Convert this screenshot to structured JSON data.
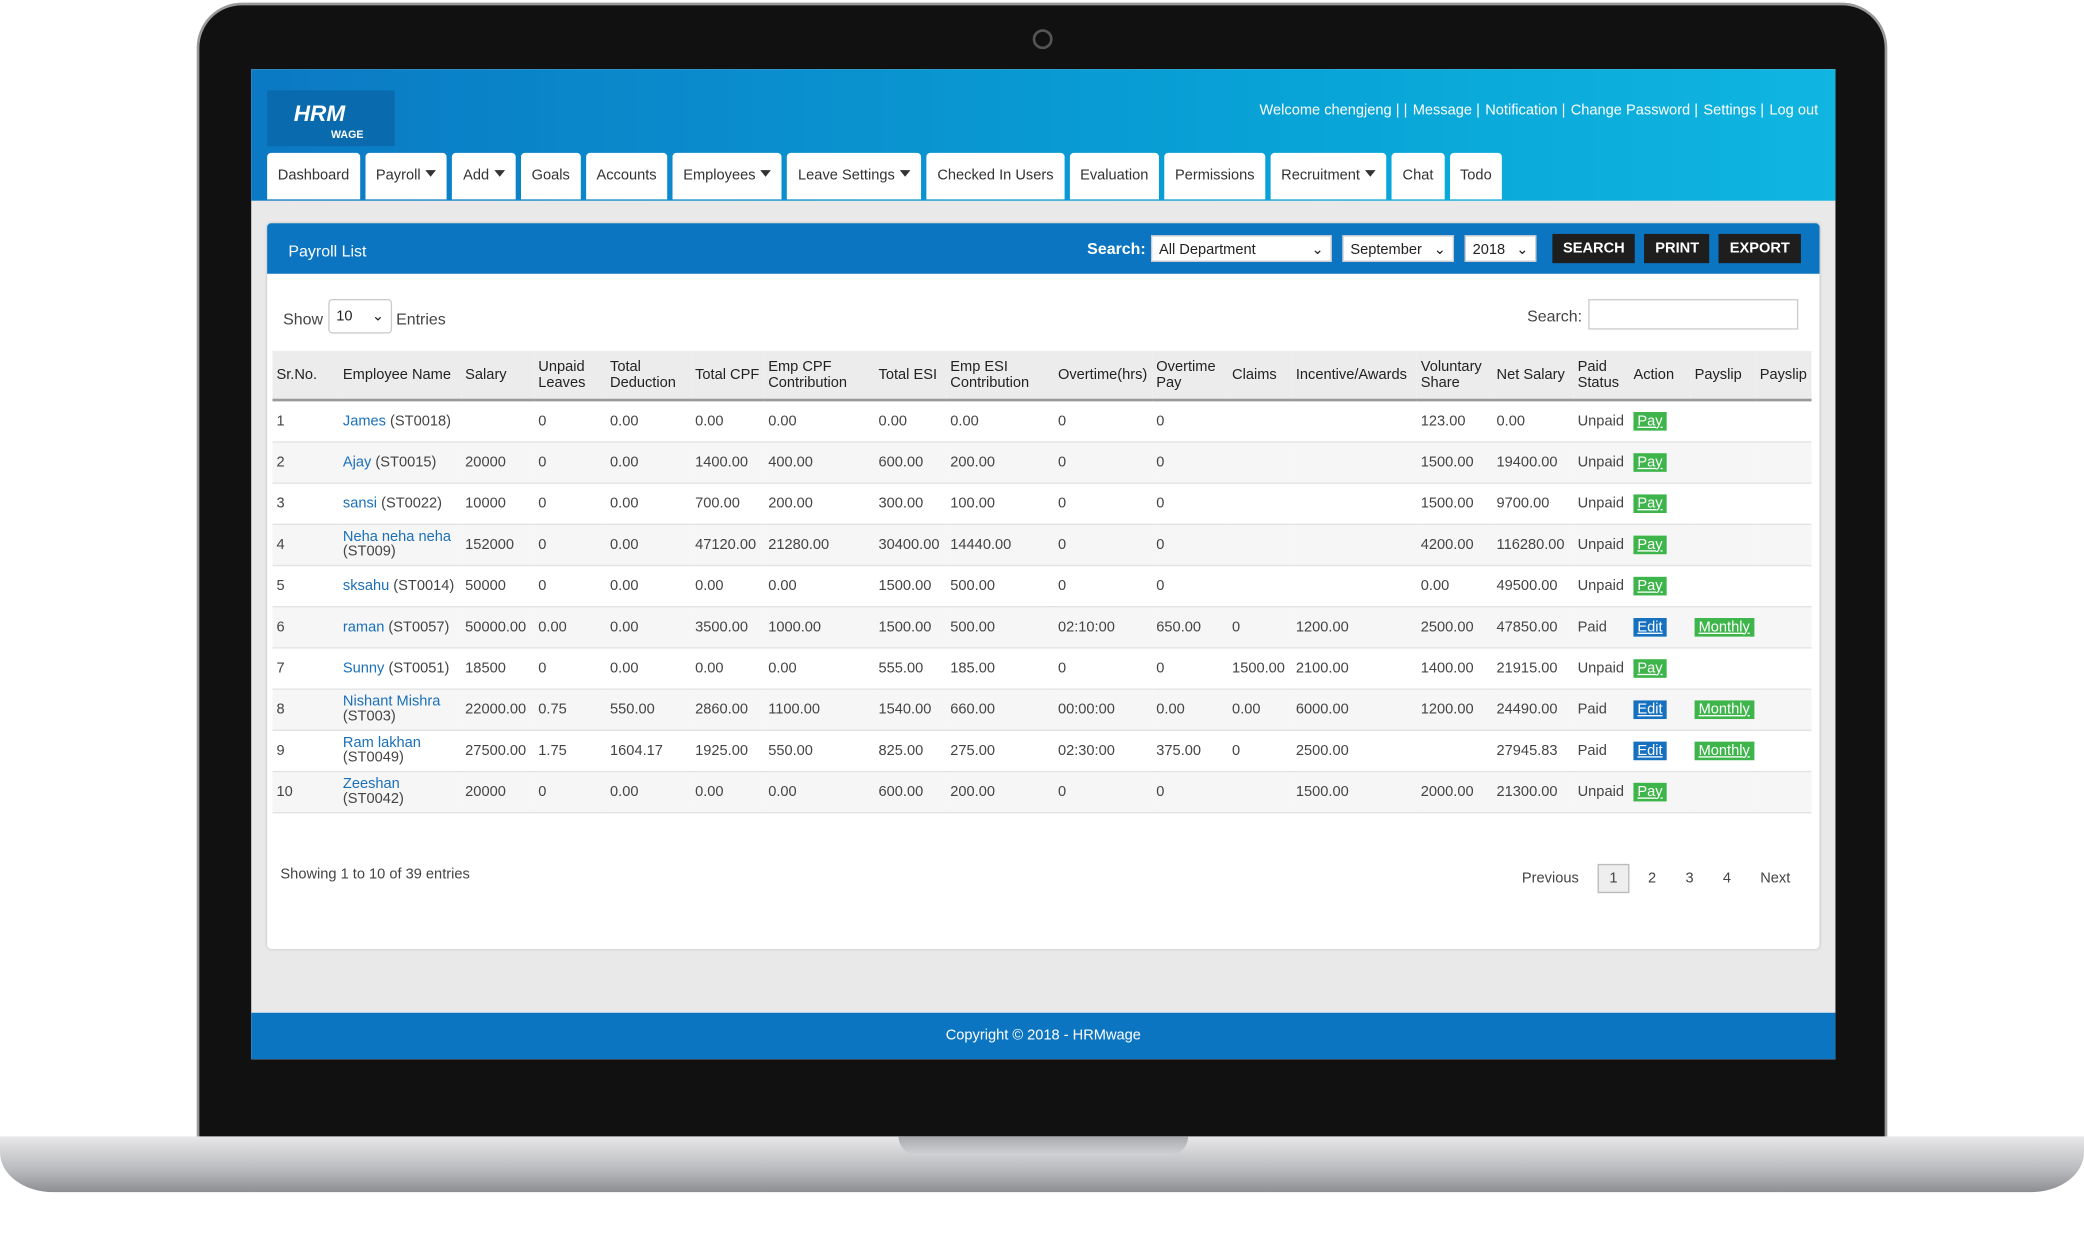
{
  "header": {
    "logo": "HRM",
    "logo_sub": "WAGE",
    "links": [
      "Welcome chengjeng | |",
      "Message |",
      "Notification |",
      "Change Password |",
      "Settings |",
      "Log out"
    ],
    "nav": [
      {
        "label": "Dashboard",
        "dropdown": false
      },
      {
        "label": "Payroll",
        "dropdown": true
      },
      {
        "label": "Add",
        "dropdown": true
      },
      {
        "label": "Goals",
        "dropdown": false
      },
      {
        "label": "Accounts",
        "dropdown": false
      },
      {
        "label": "Employees",
        "dropdown": true
      },
      {
        "label": "Leave Settings",
        "dropdown": true
      },
      {
        "label": "Checked In Users",
        "dropdown": false
      },
      {
        "label": "Evaluation",
        "dropdown": false
      },
      {
        "label": "Permissions",
        "dropdown": false
      },
      {
        "label": "Recruitment",
        "dropdown": true
      },
      {
        "label": "Chat",
        "dropdown": false
      },
      {
        "label": "Todo",
        "dropdown": false
      }
    ]
  },
  "panel": {
    "title": "Payroll List",
    "search_label": "Search:",
    "department": "All Department",
    "month": "September",
    "year": "2018",
    "buttons": [
      "SEARCH",
      "PRINT",
      "EXPORT"
    ],
    "show": "Show",
    "entries_count": "10",
    "entries": "Entries",
    "filter_label": "Search:"
  },
  "table": {
    "columns": [
      "Sr.No.",
      "Employee Name",
      "Salary",
      "Unpaid Leaves",
      "Total Deduction",
      "Total CPF",
      "Emp CPF Contribution",
      "Total ESI",
      "Emp ESI Contribution",
      "Overtime(hrs)",
      "Overtime Pay",
      "Claims",
      "Incentive/Awards",
      "Voluntary Share",
      "Net Salary",
      "Paid Status",
      "Action",
      "Payslip",
      "Payslip"
    ],
    "rows": [
      [
        "1",
        [
          "James",
          "(ST0018)"
        ],
        null,
        "0",
        "0.00",
        "0.00",
        "0.00",
        "0.00",
        "0.00",
        "0",
        "0",
        null,
        null,
        "123.00",
        "0.00",
        "Unpaid",
        "Pay",
        null,
        null
      ],
      [
        "2",
        [
          "Ajay",
          "(ST0015)"
        ],
        "20000",
        "0",
        "0.00",
        "1400.00",
        "400.00",
        "600.00",
        "200.00",
        "0",
        "0",
        null,
        null,
        "1500.00",
        "19400.00",
        "Unpaid",
        "Pay",
        null,
        null
      ],
      [
        "3",
        [
          "sansi",
          "(ST0022)"
        ],
        "10000",
        "0",
        "0.00",
        "700.00",
        "200.00",
        "300.00",
        "100.00",
        "0",
        "0",
        null,
        null,
        "1500.00",
        "9700.00",
        "Unpaid",
        "Pay",
        null,
        null
      ],
      [
        "4",
        [
          "Neha neha neha",
          "(ST009)"
        ],
        "152000",
        "0",
        "0.00",
        "47120.00",
        "21280.00",
        "30400.00",
        "14440.00",
        "0",
        "0",
        null,
        null,
        "4200.00",
        "116280.00",
        "Unpaid",
        "Pay",
        null,
        null
      ],
      [
        "5",
        [
          "sksahu",
          "(ST0014)"
        ],
        "50000",
        "0",
        "0.00",
        "0.00",
        "0.00",
        "1500.00",
        "500.00",
        "0",
        "0",
        null,
        null,
        "0.00",
        "49500.00",
        "Unpaid",
        "Pay",
        null,
        null
      ],
      [
        "6",
        [
          "raman",
          "(ST0057)"
        ],
        "50000.00",
        "0.00",
        "0.00",
        "3500.00",
        "1000.00",
        "1500.00",
        "500.00",
        "02:10:00",
        "650.00",
        "0",
        "1200.00",
        "2500.00",
        "47850.00",
        "Paid",
        "Edit",
        "Monthly",
        null
      ],
      [
        "7",
        [
          "Sunny",
          "(ST0051)"
        ],
        "18500",
        "0",
        "0.00",
        "0.00",
        "0.00",
        "555.00",
        "185.00",
        "0",
        "0",
        "1500.00",
        "2100.00",
        "1400.00",
        "21915.00",
        "Unpaid",
        "Pay",
        null,
        null
      ],
      [
        "8",
        [
          "Nishant Mishra",
          "(ST003)"
        ],
        "22000.00",
        "0.75",
        "550.00",
        "2860.00",
        "1100.00",
        "1540.00",
        "660.00",
        "00:00:00",
        "0.00",
        "0.00",
        "6000.00",
        "1200.00",
        "24490.00",
        "Paid",
        "Edit",
        "Monthly",
        null
      ],
      [
        "9",
        [
          "Ram lakhan",
          "(ST0049)"
        ],
        "27500.00",
        "1.75",
        "1604.17",
        "1925.00",
        "550.00",
        "825.00",
        "275.00",
        "02:30:00",
        "375.00",
        "0",
        "2500.00",
        null,
        "27945.83",
        "Paid",
        "Edit",
        "Monthly",
        null
      ],
      [
        "10",
        [
          "Zeeshan",
          "(ST0042)"
        ],
        "20000",
        "0",
        "0.00",
        "0.00",
        "0.00",
        "600.00",
        "200.00",
        "0",
        "0",
        null,
        "1500.00",
        "2000.00",
        "21300.00",
        "Unpaid",
        "Pay",
        null,
        null
      ]
    ]
  },
  "footer_info": "Showing 1 to 10 of 39 entries",
  "pagination": [
    "Previous",
    "1",
    "2",
    "3",
    "4",
    "Next"
  ],
  "copyright": "Copyright © 2018 - HRMwage"
}
